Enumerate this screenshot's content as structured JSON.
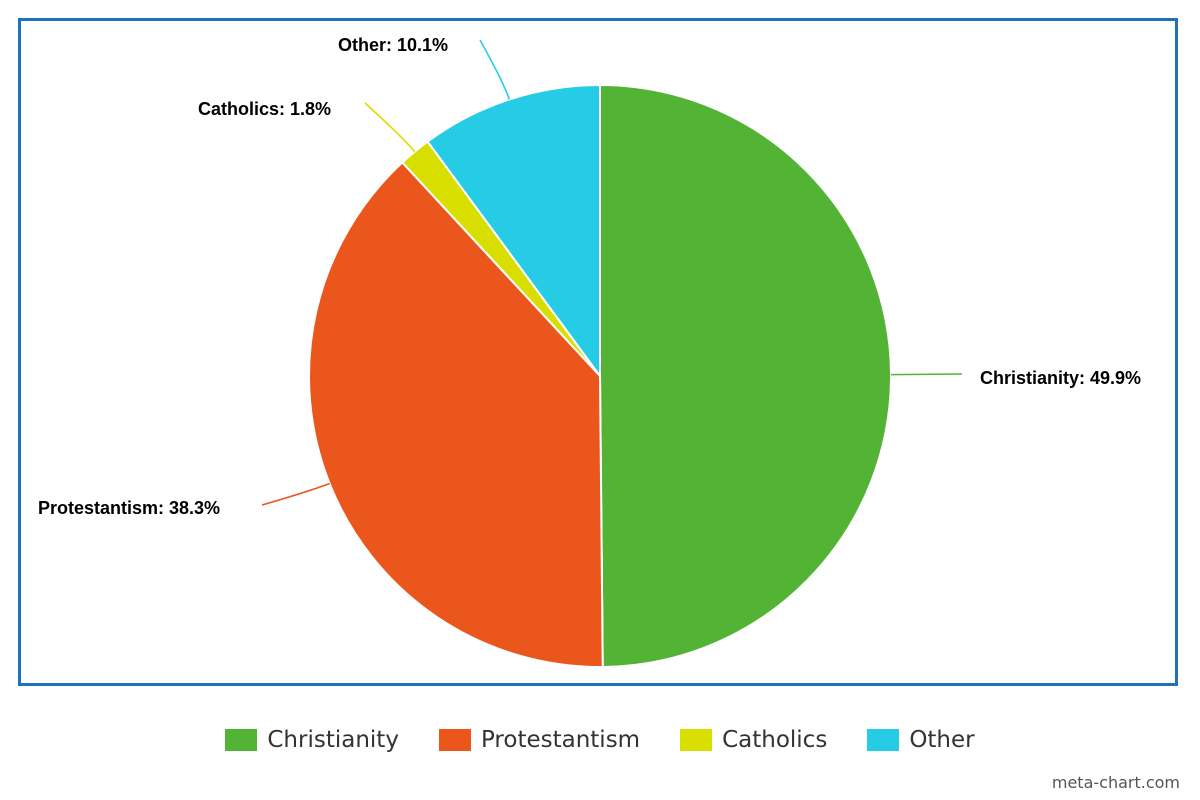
{
  "chart_data": {
    "type": "pie",
    "title": "",
    "categories": [
      "Christianity",
      "Protestantism",
      "Catholics",
      "Other"
    ],
    "values": [
      49.9,
      38.3,
      1.8,
      10.1
    ],
    "labels": [
      "Christianity: 49.9%",
      "Protestantism: 38.3%",
      "Catholics: 1.8%",
      "Other: 10.1%"
    ],
    "colors": [
      "#52b335",
      "#eb561d",
      "#d8df00",
      "#26cbe6"
    ],
    "start_angle": "12 o'clock",
    "direction": "clockwise",
    "legend_position": "bottom-center"
  },
  "legend": {
    "items": [
      {
        "label": "Christianity",
        "color": "#52b335"
      },
      {
        "label": "Protestantism",
        "color": "#eb561d"
      },
      {
        "label": "Catholics",
        "color": "#d8df00"
      },
      {
        "label": "Other",
        "color": "#26cbe6"
      }
    ]
  },
  "watermark": "meta-chart.com",
  "frame_color": "#1f72c0"
}
